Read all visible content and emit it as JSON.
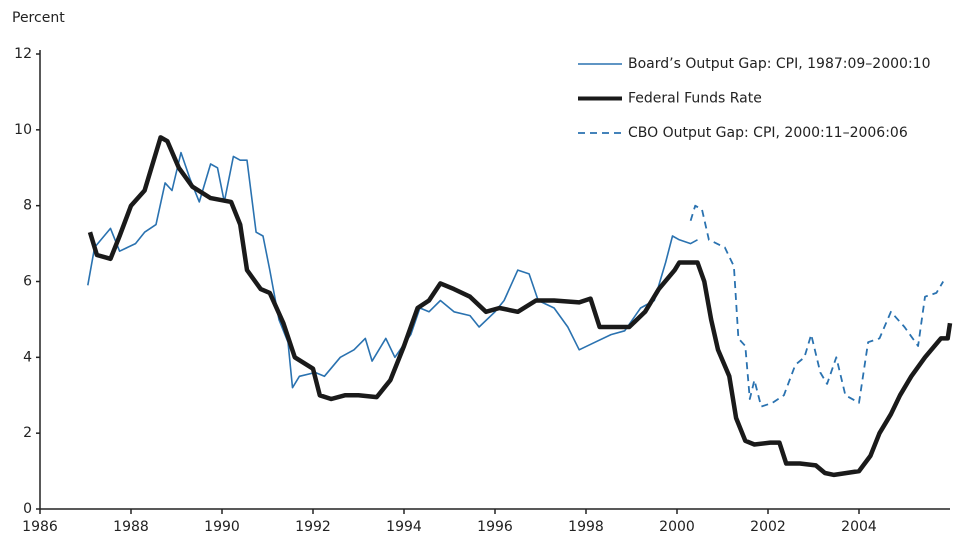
{
  "chart_data": {
    "type": "line",
    "y_label": "Percent",
    "xlim": [
      1986,
      2006
    ],
    "xticks": [
      1986,
      1988,
      1990,
      1992,
      1994,
      1996,
      1998,
      2000,
      2002,
      2004
    ],
    "ylim": [
      0,
      12
    ],
    "yticks": [
      0,
      2,
      4,
      6,
      8,
      10,
      12
    ],
    "grid": false,
    "legend": "top-right",
    "series": [
      {
        "name": "Board’s Output Gap: CPI, 1987:09–2000:10",
        "color": "#2a72b0",
        "width": 1.6,
        "dashed": false,
        "x": [
          1987.05,
          1987.2,
          1987.55,
          1987.75,
          1988.1,
          1988.3,
          1988.55,
          1988.75,
          1988.9,
          1989.1,
          1989.3,
          1989.5,
          1989.75,
          1989.9,
          1990.05,
          1990.25,
          1990.4,
          1990.55,
          1990.75,
          1990.9,
          1991.05,
          1991.25,
          1991.45,
          1991.55,
          1991.7,
          1992.05,
          1992.25,
          1992.6,
          1992.9,
          1993.15,
          1993.3,
          1993.6,
          1993.8,
          1994.15,
          1994.35,
          1994.55,
          1994.8,
          1995.1,
          1995.45,
          1995.65,
          1996.0,
          1996.2,
          1996.5,
          1996.75,
          1996.95,
          1997.3,
          1997.6,
          1997.85,
          1998.2,
          1998.55,
          1998.85,
          1999.2,
          1999.5,
          1999.75,
          1999.9,
          2000.05,
          2000.3,
          2000.45
        ],
        "values": [
          5.9,
          6.9,
          7.4,
          6.8,
          7.0,
          7.3,
          7.5,
          8.6,
          8.4,
          9.4,
          8.7,
          8.1,
          9.1,
          9.0,
          8.1,
          9.3,
          9.2,
          9.2,
          7.3,
          7.2,
          6.3,
          5.0,
          4.4,
          3.2,
          3.5,
          3.6,
          3.5,
          4.0,
          4.2,
          4.5,
          3.9,
          4.5,
          4.0,
          4.6,
          5.3,
          5.2,
          5.5,
          5.2,
          5.1,
          4.8,
          5.2,
          5.5,
          6.3,
          6.2,
          5.5,
          5.3,
          4.8,
          4.2,
          4.4,
          4.6,
          4.7,
          5.3,
          5.5,
          6.5,
          7.2,
          7.1,
          7.0,
          7.1
        ]
      },
      {
        "name": "Federal Funds Rate",
        "color": "#1a1a1a",
        "width": 4.5,
        "dashed": false,
        "x": [
          1987.1,
          1987.25,
          1987.55,
          1987.75,
          1988.0,
          1988.3,
          1988.65,
          1988.8,
          1989.05,
          1989.35,
          1989.75,
          1990.2,
          1990.4,
          1990.55,
          1990.85,
          1991.05,
          1991.35,
          1991.6,
          1992.0,
          1992.15,
          1992.4,
          1992.7,
          1993.0,
          1993.4,
          1993.7,
          1994.0,
          1994.3,
          1994.55,
          1994.8,
          1995.1,
          1995.45,
          1995.8,
          1996.1,
          1996.5,
          1996.9,
          1997.3,
          1997.85,
          1998.1,
          1998.3,
          1998.65,
          1998.95,
          1999.3,
          1999.6,
          1999.95,
          2000.05,
          2000.45,
          2000.6,
          2000.75,
          2000.9,
          2001.15,
          2001.3,
          2001.5,
          2001.7,
          2002.05,
          2002.25,
          2002.4,
          2002.7,
          2003.05,
          2003.25,
          2003.45,
          2004.0,
          2004.25,
          2004.45,
          2004.7,
          2004.9,
          2005.15,
          2005.45,
          2005.8,
          2005.95,
          2006.0
        ],
        "values": [
          7.3,
          6.7,
          6.6,
          7.2,
          8.0,
          8.4,
          9.8,
          9.7,
          9.0,
          8.5,
          8.2,
          8.1,
          7.5,
          6.3,
          5.8,
          5.7,
          4.9,
          4.0,
          3.7,
          3.0,
          2.9,
          3.0,
          3.0,
          2.95,
          3.4,
          4.3,
          5.3,
          5.5,
          5.95,
          5.8,
          5.6,
          5.2,
          5.3,
          5.2,
          5.5,
          5.5,
          5.45,
          5.55,
          4.8,
          4.8,
          4.8,
          5.2,
          5.8,
          6.3,
          6.5,
          6.5,
          6.0,
          5.0,
          4.2,
          3.5,
          2.4,
          1.8,
          1.7,
          1.75,
          1.75,
          1.2,
          1.2,
          1.15,
          0.95,
          0.9,
          1.0,
          1.4,
          2.0,
          2.5,
          3.0,
          3.5,
          4.0,
          4.5,
          4.5,
          4.9
        ]
      },
      {
        "name": "CBO Output Gap: CPI, 2000:11–2006:06",
        "color": "#2a72b0",
        "width": 1.8,
        "dashed": true,
        "x": [
          2000.3,
          2000.4,
          2000.55,
          2000.7,
          2001.05,
          2001.25,
          2001.35,
          2001.5,
          2001.6,
          2001.7,
          2001.85,
          2002.1,
          2002.35,
          2002.6,
          2002.8,
          2002.95,
          2003.15,
          2003.3,
          2003.5,
          2003.7,
          2004.0,
          2004.2,
          2004.45,
          2004.7,
          2005.0,
          2005.3,
          2005.45,
          2005.7,
          2005.85
        ],
        "values": [
          7.6,
          8.0,
          7.9,
          7.1,
          6.9,
          6.4,
          4.5,
          4.3,
          2.9,
          3.4,
          2.7,
          2.8,
          3.0,
          3.8,
          4.0,
          4.6,
          3.6,
          3.3,
          4.0,
          3.0,
          2.8,
          4.4,
          4.5,
          5.2,
          4.8,
          4.3,
          5.6,
          5.7,
          6.0
        ]
      }
    ]
  }
}
